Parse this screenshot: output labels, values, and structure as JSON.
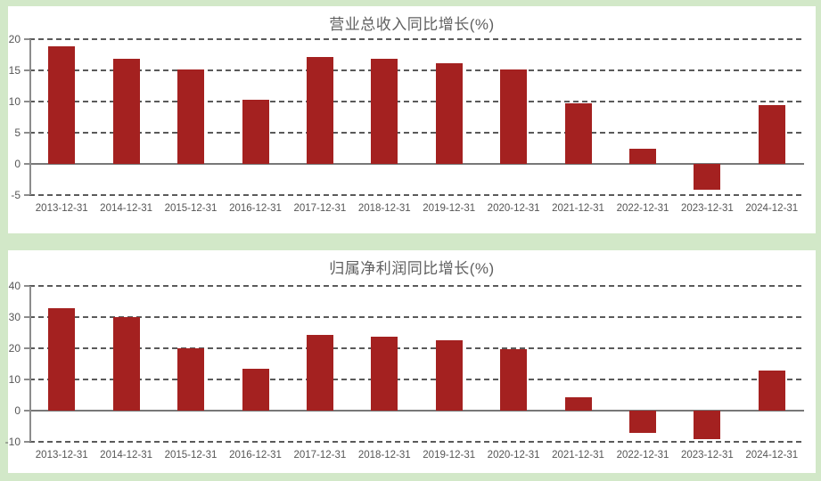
{
  "page": {
    "background_color": "#d2e8c8",
    "panel_color": "#ffffff"
  },
  "colors": {
    "bar": "#a42120",
    "gridline": "#5a5a5a",
    "zero_line": "#787878",
    "axis_line": "#8c8c8c",
    "tick_label": "#555555",
    "title": "#606060"
  },
  "chart_data": [
    {
      "type": "bar",
      "title": "营业总收入同比增长(%)",
      "xlabel": "",
      "ylabel": "",
      "grid": "dashed-horizontal",
      "legend": "none",
      "categories": [
        "2013-12-31",
        "2014-12-31",
        "2015-12-31",
        "2016-12-31",
        "2017-12-31",
        "2018-12-31",
        "2019-12-31",
        "2020-12-31",
        "2021-12-31",
        "2022-12-31",
        "2023-12-31",
        "2024-12-31"
      ],
      "values": [
        18.8,
        16.9,
        15.1,
        10.3,
        17.1,
        16.8,
        16.2,
        15.1,
        9.7,
        2.4,
        -4.1,
        9.5
      ],
      "ylim": [
        -5,
        20
      ],
      "yticks": [
        -5,
        0,
        5,
        10,
        15,
        20
      ]
    },
    {
      "type": "bar",
      "title": "归属净利润同比增长(%)",
      "xlabel": "",
      "ylabel": "",
      "grid": "dashed-horizontal",
      "legend": "none",
      "categories": [
        "2013-12-31",
        "2014-12-31",
        "2015-12-31",
        "2016-12-31",
        "2017-12-31",
        "2018-12-31",
        "2019-12-31",
        "2020-12-31",
        "2021-12-31",
        "2022-12-31",
        "2023-12-31",
        "2024-12-31"
      ],
      "values": [
        33.0,
        30.1,
        20.1,
        13.3,
        24.2,
        23.6,
        22.6,
        19.6,
        4.2,
        -7.1,
        -9.2,
        13.0
      ],
      "ylim": [
        -10,
        40
      ],
      "yticks": [
        -10,
        0,
        10,
        20,
        30,
        40
      ]
    }
  ]
}
